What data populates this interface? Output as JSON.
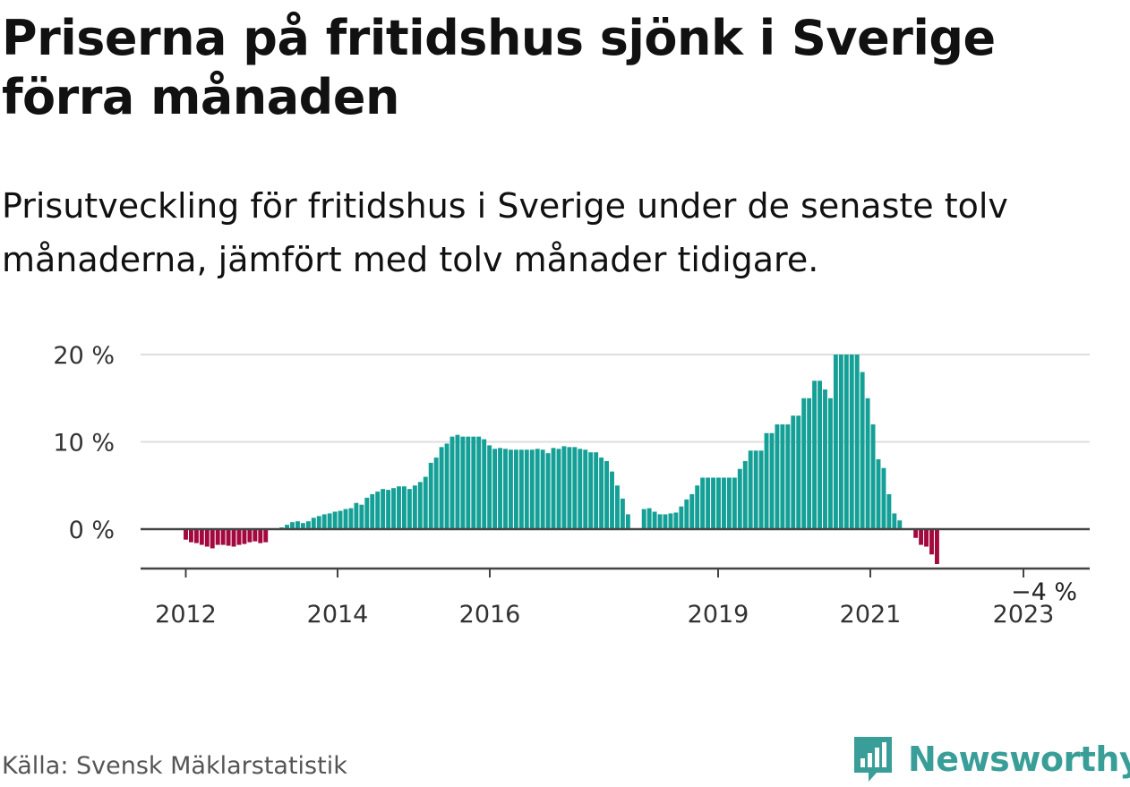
{
  "title": "Priserna på fritidshus sjönk i Sverige förra månaden",
  "subtitle": "Prisutveckling för fritidshus i Sverige under de senaste tolv månaderna, jämfört med tolv månader tidigare.",
  "source": "Källa: Svensk Mäklarstatistik",
  "brand": "Newsworthy",
  "colors": {
    "positive": "#14a096",
    "negative": "#a3093e",
    "brand": "#3a9e98"
  },
  "chart_data": {
    "type": "bar",
    "unit": "%",
    "ylim": [
      -4.5,
      20
    ],
    "yticks": [
      0,
      10,
      20
    ],
    "ytick_labels": [
      "0 %",
      "10 %",
      "20 %"
    ],
    "xticks": [
      "2012",
      "2014",
      "2016",
      "2019",
      "2021",
      "2023"
    ],
    "last_label": "−4 %",
    "grid": true,
    "first_month": "2011-06",
    "values": [
      0,
      0,
      0,
      0,
      0,
      0,
      -1.2,
      -1.5,
      -1.6,
      -1.8,
      -2.0,
      -2.2,
      -1.8,
      -1.8,
      -1.9,
      -2.0,
      -1.8,
      -1.7,
      -1.5,
      -1.4,
      -1.6,
      -1.5,
      0,
      0,
      0.2,
      0.5,
      0.8,
      0.9,
      0.7,
      0.9,
      1.3,
      1.5,
      1.7,
      1.8,
      2.0,
      2.1,
      2.3,
      2.4,
      3.0,
      2.8,
      3.6,
      4.0,
      4.3,
      4.6,
      4.5,
      4.7,
      4.9,
      4.9,
      4.6,
      5.0,
      5.4,
      6.0,
      7.6,
      8.2,
      9.4,
      9.8,
      10.6,
      10.8,
      10.6,
      10.6,
      10.6,
      10.6,
      10.3,
      9.6,
      9.2,
      9.3,
      9.2,
      9.1,
      9.1,
      9.1,
      9.1,
      9.1,
      9.2,
      9.1,
      8.7,
      9.3,
      9.2,
      9.5,
      9.4,
      9.4,
      9.2,
      9.1,
      8.8,
      8.8,
      8.2,
      7.8,
      6.6,
      5.0,
      3.5,
      1.7,
      0,
      0,
      2.3,
      2.4,
      2.0,
      1.7,
      1.7,
      1.8,
      1.9,
      2.6,
      3.4,
      4.0,
      5.0,
      5.9,
      5.9,
      5.9,
      5.9,
      5.9,
      5.9,
      5.9,
      6.9,
      7.8,
      9.0,
      9.0,
      9.0,
      11.0,
      11.0,
      12.0,
      12.0,
      12.0,
      13.0,
      13.0,
      15.0,
      15.0,
      17.0,
      17.0,
      16.0,
      15.0,
      20.0,
      20.0,
      20.0,
      20.0,
      20.0,
      18.0,
      15.0,
      12.0,
      8.0,
      7.0,
      4.0,
      1.8,
      1.0,
      0,
      0,
      -1.0,
      -1.8,
      -2.0,
      -2.9,
      -4.0
    ]
  }
}
